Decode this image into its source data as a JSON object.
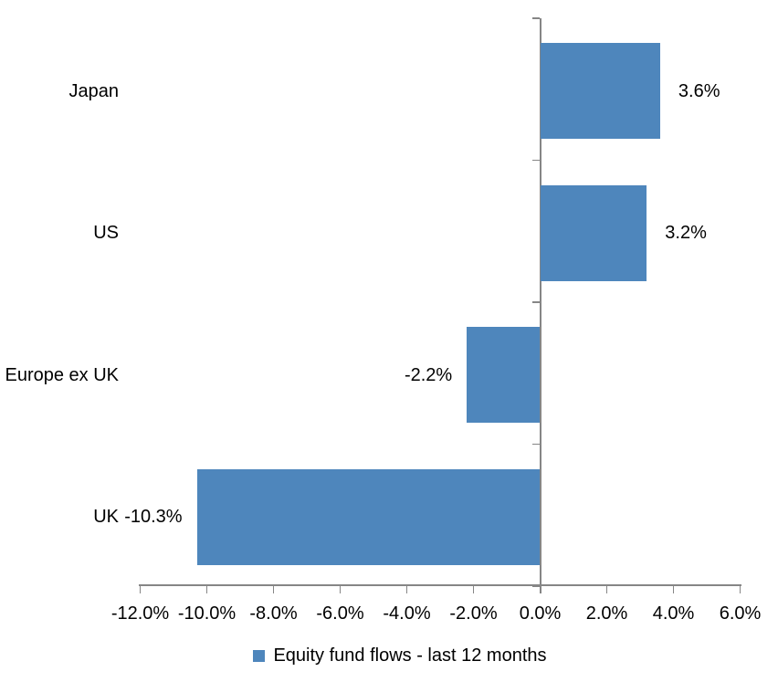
{
  "chart_data": {
    "type": "bar",
    "orientation": "horizontal",
    "title": "",
    "categories": [
      "Japan",
      "US",
      "Europe ex UK",
      "UK"
    ],
    "series": [
      {
        "name": "Equity fund flows - last 12 months",
        "values": [
          3.6,
          3.2,
          -2.2,
          -10.3
        ],
        "data_labels": [
          "3.6%",
          "3.2%",
          "-2.2%",
          "-10.3%"
        ]
      }
    ],
    "xlabel": "",
    "ylabel": "",
    "xlim": [
      -12,
      6
    ],
    "x_ticks": [
      -12,
      -10,
      -8,
      -6,
      -4,
      -2,
      0,
      2,
      4,
      6
    ],
    "x_tick_labels": [
      "-12.0%",
      "-10.0%",
      "-8.0%",
      "-6.0%",
      "-4.0%",
      "-2.0%",
      "0.0%",
      "2.0%",
      "4.0%",
      "6.0%"
    ],
    "grid": false,
    "legend_position": "bottom",
    "bar_color": "#4E86BC",
    "axis_color": "#868686",
    "text_color": "#000000"
  },
  "legend": {
    "label": "Equity fund flows - last 12 months"
  }
}
